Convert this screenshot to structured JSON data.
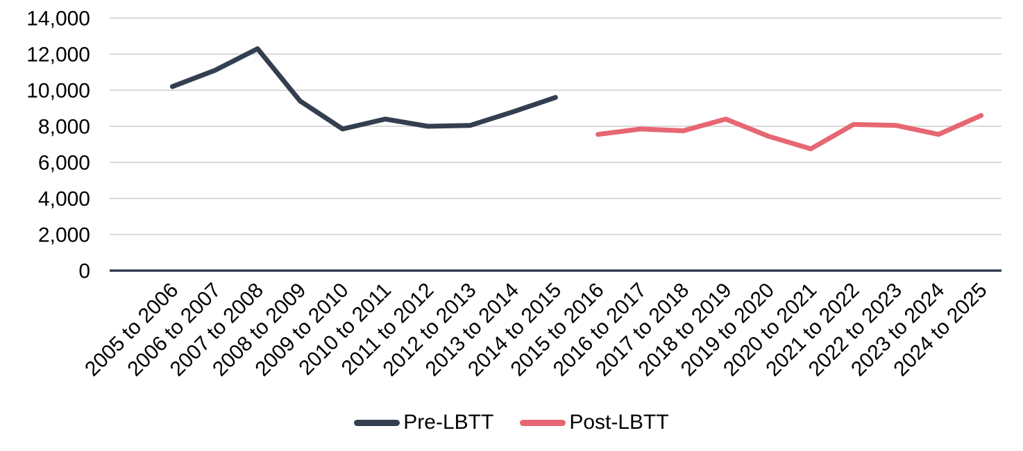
{
  "chart_data": {
    "type": "line",
    "title": "",
    "xlabel": "",
    "ylabel": "",
    "grid": true,
    "legend_position": "bottom",
    "categories": [
      "2005 to 2006",
      "2006 to 2007",
      "2007 to 2008",
      "2008 to 2009",
      "2009 to 2010",
      "2010 to 2011",
      "2011 to 2012",
      "2012 to 2013",
      "2013 to 2014",
      "2014 to 2015",
      "2015 to 2016",
      "2016 to 2017",
      "2017 to 2018",
      "2018 to 2019",
      "2019 to 2020",
      "2020 to 2021",
      "2021 to 2022",
      "2022 to 2023",
      "2023 to 2024",
      "2024 to 2025"
    ],
    "series": [
      {
        "name": "Pre-LBTT",
        "color": "#333F4F",
        "values": [
          10200,
          11100,
          12300,
          9400,
          7850,
          8400,
          8000,
          8050,
          8800,
          9600,
          null,
          null,
          null,
          null,
          null,
          null,
          null,
          null,
          null,
          null
        ]
      },
      {
        "name": "Post-LBTT",
        "color": "#E66772",
        "values": [
          null,
          null,
          null,
          null,
          null,
          null,
          null,
          null,
          null,
          null,
          7550,
          7850,
          7750,
          8400,
          7450,
          6750,
          8100,
          8050,
          7550,
          8600
        ]
      }
    ],
    "y_axis": {
      "min": 0,
      "max": 14000,
      "step": 2000,
      "ticks": [
        0,
        2000,
        4000,
        6000,
        8000,
        10000,
        12000,
        14000
      ],
      "tick_labels": [
        "0",
        "2,000",
        "4,000",
        "6,000",
        "8,000",
        "10,000",
        "12,000",
        "14,000"
      ]
    }
  },
  "colors": {
    "gridline": "#D9D9D9",
    "axis_line": "#333F4F",
    "text": "#000000",
    "background": "#FFFFFF"
  }
}
